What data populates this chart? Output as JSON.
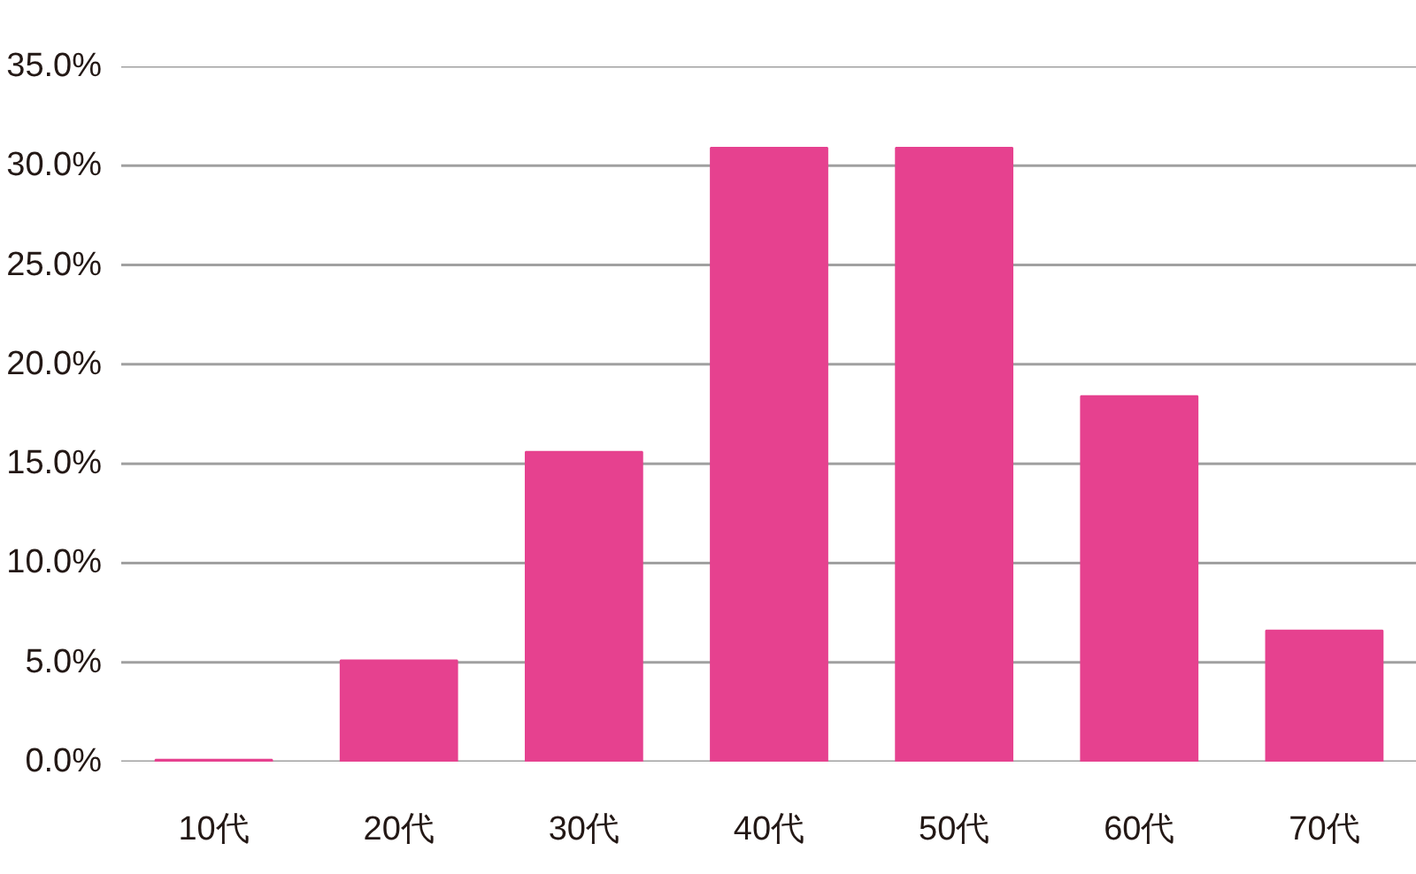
{
  "chart_data": {
    "type": "bar",
    "categories": [
      "10代",
      "20代",
      "30代",
      "40代",
      "50代",
      "60代",
      "70代"
    ],
    "values": [
      0.1,
      5.1,
      15.6,
      30.9,
      30.9,
      18.4,
      6.6
    ],
    "color": "#e6418f",
    "ylim": [
      0,
      35
    ],
    "yticks": [
      {
        "value": 0,
        "label": "0.0%"
      },
      {
        "value": 5,
        "label": "5.0%"
      },
      {
        "value": 10,
        "label": "10.0%"
      },
      {
        "value": 15,
        "label": "15.0%"
      },
      {
        "value": 20,
        "label": "20.0%"
      },
      {
        "value": 25,
        "label": "25.0%"
      },
      {
        "value": 30,
        "label": "30.0%"
      },
      {
        "value": 35,
        "label": "35.0%"
      }
    ],
    "grid": "y"
  }
}
